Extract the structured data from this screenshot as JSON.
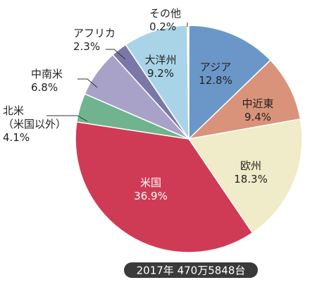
{
  "chart_data": {
    "type": "pie",
    "title": "",
    "caption": "2017年 470万5848台",
    "slices": [
      {
        "label": "アジア",
        "value": 12.8,
        "value_label": "12.8%",
        "color": "#6b97c8"
      },
      {
        "label": "中近東",
        "value": 9.4,
        "value_label": "9.4%",
        "color": "#d9937a"
      },
      {
        "label": "欧州",
        "value": 18.3,
        "value_label": "18.3%",
        "color": "#f0ebc8"
      },
      {
        "label": "米国",
        "value": 36.9,
        "value_label": "36.9%",
        "color": "#cf3b55"
      },
      {
        "label": "北米\n（米国以外）",
        "value": 4.1,
        "value_label": "4.1%",
        "color": "#6fb38f"
      },
      {
        "label": "中南米",
        "value": 6.8,
        "value_label": "6.8%",
        "color": "#a8a2c8"
      },
      {
        "label": "アフリカ",
        "value": 2.3,
        "value_label": "2.3%",
        "color": "#7a78a6"
      },
      {
        "label": "大洋州",
        "value": 9.2,
        "value_label": "9.2%",
        "color": "#a9d4e8"
      },
      {
        "label": "その他",
        "value": 0.2,
        "value_label": "0.2%",
        "color": "#f5f0d8"
      }
    ]
  }
}
